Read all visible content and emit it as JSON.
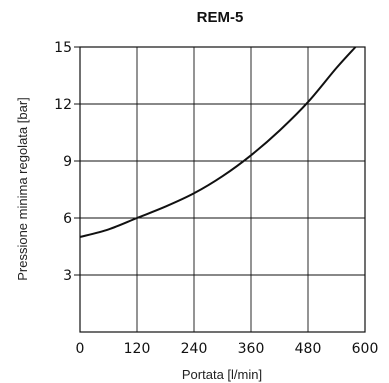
{
  "chart_data": {
    "type": "line",
    "title": "REM-5",
    "xlabel": "Portata [l/min]",
    "ylabel": "Pressione minima regolata [bar]",
    "xlim": [
      0,
      600
    ],
    "ylim": [
      0,
      15
    ],
    "xticks": [
      "0",
      "120",
      "240",
      "360",
      "480",
      "600"
    ],
    "yticks": [
      "3",
      "6",
      "9",
      "12",
      "15"
    ],
    "grid": true,
    "series": [
      {
        "x": [
          0,
          60,
          120,
          180,
          240,
          300,
          360,
          420,
          480,
          540,
          580
        ],
        "y": [
          5.0,
          5.4,
          6.0,
          6.6,
          7.3,
          8.2,
          9.3,
          10.6,
          12.1,
          13.9,
          15.0
        ]
      }
    ]
  }
}
